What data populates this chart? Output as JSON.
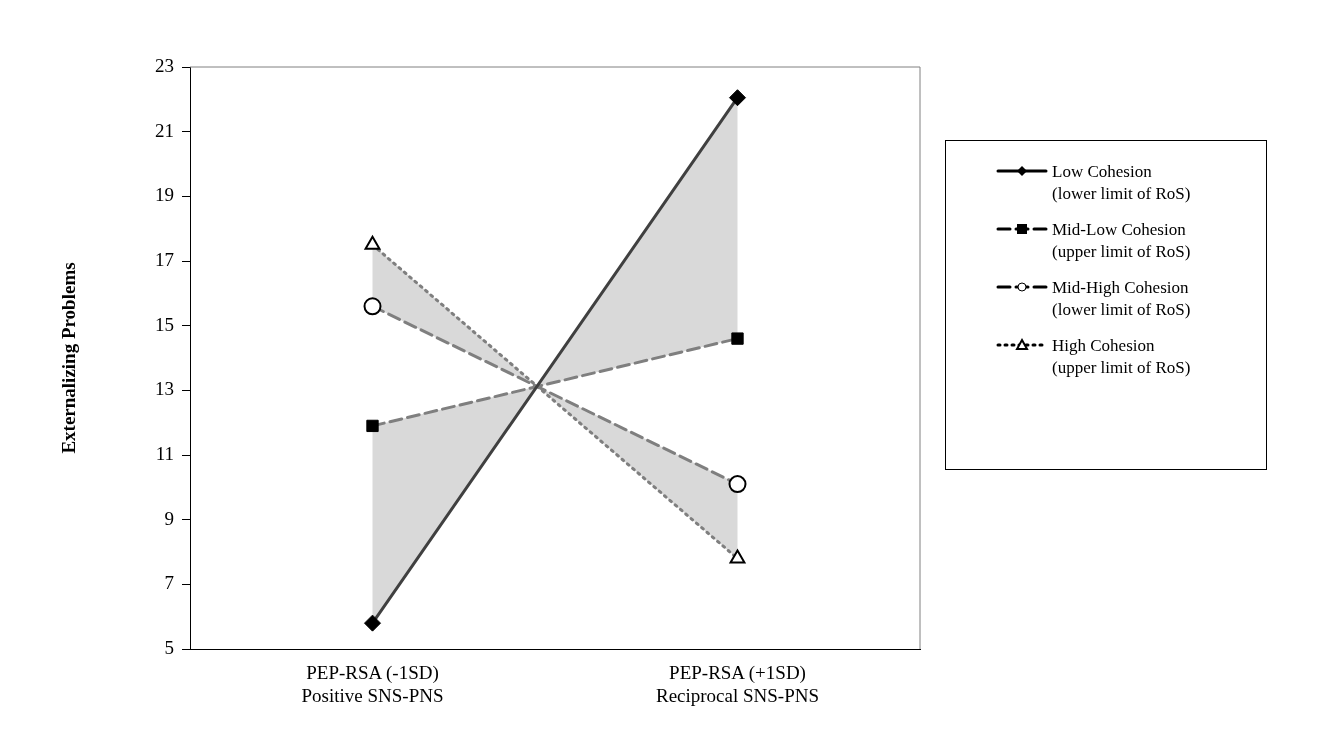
{
  "chart_data": {
    "type": "line",
    "categories": [
      "PEP-RSA (-1SD)\nPositive SNS-PNS",
      "PEP-RSA (+1SD)\nReciprocal SNS-PNS"
    ],
    "ylabel": "Externalizing Problems",
    "ylim": [
      5,
      23
    ],
    "yticks": [
      5,
      7,
      9,
      11,
      13,
      15,
      17,
      19,
      21,
      23
    ],
    "grid": false,
    "legend": "right",
    "series": [
      {
        "name": "Low Cohesion (lower limit of RoS)",
        "color": "#404040",
        "values": [
          5.8,
          22.05
        ],
        "marker": "diamond",
        "line_style": "solid",
        "lower": [
          5.8,
          22.05
        ],
        "upper": [
          11.9,
          14.6
        ]
      },
      {
        "name": "Mid-Low Cohesion (upper limit of RoS)",
        "color": "#7f7f7f",
        "values": [
          11.9,
          14.6
        ],
        "marker": "square",
        "line_style": "dashed"
      },
      {
        "name": "Mid-High Cohesion (lower limit of RoS)",
        "color": "#7f7f7f",
        "values": [
          15.6,
          10.1
        ],
        "marker": "circle",
        "line_style": "dashed",
        "lower": [
          15.6,
          10.1
        ],
        "upper": [
          17.5,
          7.8
        ]
      },
      {
        "name": "High Cohesion (upper limit of RoS)",
        "color": "#7f7f7f",
        "values": [
          17.5,
          7.8
        ],
        "marker": "triangle",
        "line_style": "dotted"
      }
    ]
  }
}
